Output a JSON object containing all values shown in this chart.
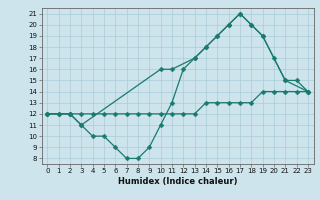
{
  "xlabel": "Humidex (Indice chaleur)",
  "bg_color": "#cde4ec",
  "line_color": "#1a7a6e",
  "grid_color": "#aacdd8",
  "xlim": [
    -0.5,
    23.5
  ],
  "ylim": [
    7.5,
    21.5
  ],
  "xticks": [
    0,
    1,
    2,
    3,
    4,
    5,
    6,
    7,
    8,
    9,
    10,
    11,
    12,
    13,
    14,
    15,
    16,
    17,
    18,
    19,
    20,
    21,
    22,
    23
  ],
  "yticks": [
    8,
    9,
    10,
    11,
    12,
    13,
    14,
    15,
    16,
    17,
    18,
    19,
    20,
    21
  ],
  "line1_x": [
    0,
    1,
    2,
    3,
    4,
    5,
    6,
    7,
    8,
    9,
    10,
    11,
    12,
    13,
    14,
    15,
    16,
    17,
    18,
    19,
    20,
    21,
    22,
    23
  ],
  "line1_y": [
    12,
    12,
    12,
    11,
    10,
    10,
    9,
    8,
    8,
    9,
    11,
    13,
    16,
    17,
    18,
    19,
    20,
    21,
    20,
    19,
    17,
    15,
    15,
    14
  ],
  "line2_x": [
    0,
    1,
    2,
    3,
    4,
    5,
    6,
    7,
    8,
    9,
    10,
    11,
    12,
    13,
    14,
    15,
    16,
    17,
    18,
    19,
    20,
    21,
    22,
    23
  ],
  "line2_y": [
    12,
    12,
    12,
    12,
    12,
    12,
    12,
    12,
    12,
    12,
    12,
    12,
    12,
    12,
    13,
    13,
    13,
    13,
    13,
    14,
    14,
    14,
    14,
    14
  ],
  "line3_x": [
    0,
    2,
    3,
    10,
    11,
    13,
    14,
    15,
    16,
    17,
    18,
    19,
    21,
    23
  ],
  "line3_y": [
    12,
    12,
    11,
    16,
    16,
    17,
    18,
    19,
    20,
    21,
    20,
    19,
    15,
    14
  ],
  "markersize": 2.5,
  "linewidth": 0.9,
  "tick_fontsize": 5.0,
  "xlabel_fontsize": 6.0
}
